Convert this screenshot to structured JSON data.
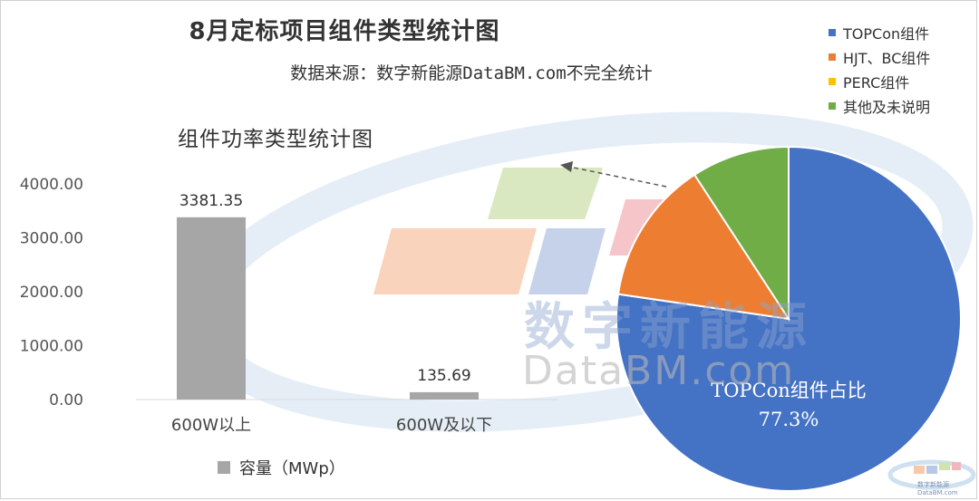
{
  "chart_data": [
    {
      "type": "bar",
      "title": "组件功率类型统计图",
      "categories": [
        "600W以上",
        "600W及以下"
      ],
      "series": [
        {
          "name": "容量（MWp）",
          "values": [
            3381.35,
            135.69
          ]
        }
      ],
      "data_labels": [
        "3381.35",
        "135.69"
      ],
      "yticks": [
        "4000.00",
        "3000.00",
        "2000.00",
        "1000.00",
        "0.00"
      ],
      "ylim": [
        0,
        4000
      ],
      "color": "#a6a6a6"
    },
    {
      "type": "pie",
      "categories": [
        "TOPCon组件",
        "HJT、BC组件",
        "PERC组件",
        "其他及未说明"
      ],
      "values": [
        77.3,
        13.5,
        0,
        9.2
      ],
      "colors": [
        "#4472c4",
        "#ed7d31",
        "#ffc000",
        "#70ad47"
      ],
      "legend_position": "top-right",
      "annotation": {
        "label": "TOPCon组件占比",
        "value": "77.3%"
      }
    }
  ],
  "header": {
    "title": "8月定标项目组件类型统计图",
    "subtitle": "数据来源：数字新能源DataBM.com不完全统计"
  },
  "watermark": {
    "cn": "数字新能源",
    "en": "DataBM.com",
    "corner_cn": "数字新能源",
    "corner_en": "DataBM.com"
  }
}
